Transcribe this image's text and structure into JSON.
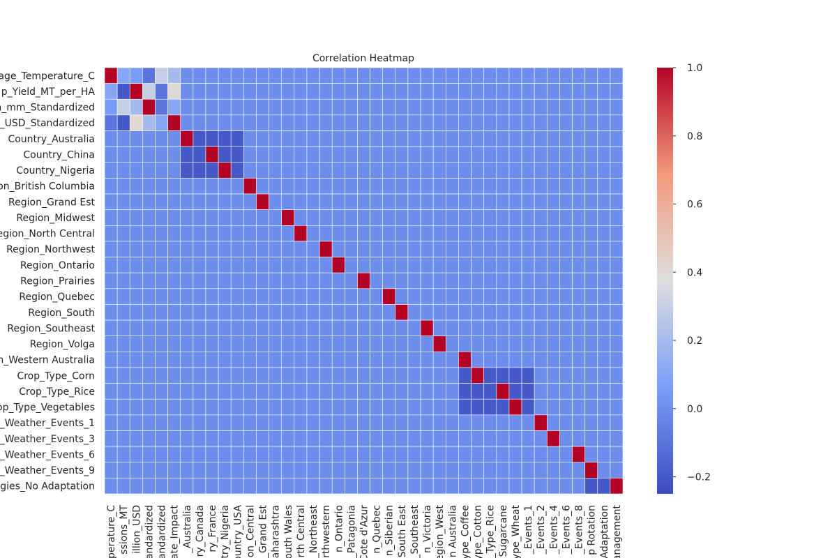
{
  "chart_data": {
    "type": "heatmap",
    "title": "Correlation Heatmap",
    "colormap": "coolwarm",
    "x_categories": [
      "perature_C",
      "ssions_MT",
      "illion_USD",
      "tandardized",
      "tandardized",
      "ate_Impact",
      "_Australia",
      "ry_Canada",
      "ry_France",
      "try_Nigeria",
      "ountry_USA",
      "on_Central",
      "_Grand Est",
      "aharashtra",
      "outh Wales",
      "rth Central",
      "_Northeast",
      "rthwestern",
      "n_Ontario",
      "_Patagonia",
      "Cote d'Azur",
      "n_Quebec",
      "n_Siberian",
      "South East",
      "_Southeast",
      "n_Victoria",
      "egion_West",
      "n Australia",
      "ype_Coffee",
      "ype_Cotton",
      "_Type_Rice",
      "Sugarcane",
      "ype_Wheat",
      "_Events_1",
      "_Events_2",
      "_Events_4",
      "_Events_6",
      "_Events_8",
      "p Rotation",
      "Adaptation",
      "anagement"
    ],
    "y_categories": [
      "age_Temperature_C",
      "p_Yield_MT_per_HA",
      "n_mm_Standardized",
      "_USD_Standardized",
      "Country_Australia",
      "Country_China",
      "Country_Nigeria",
      "on_British Columbia",
      "Region_Grand Est",
      "Region_Midwest",
      "egion_North Central",
      "Region_Northwest",
      "Region_Ontario",
      "Region_Prairies",
      "Region_Quebec",
      "Region_South",
      "Region_Southeast",
      "Region_Volga",
      "n_Western Australia",
      "Crop_Type_Corn",
      "Crop_Type_Rice",
      "op_Type_Vegetables",
      "_Weather_Events_1",
      "_Weather_Events_3",
      "_Weather_Events_6",
      "_Weather_Events_9",
      "egies_No Adaptation"
    ],
    "values": [
      [
        1,
        0.1,
        0.05,
        -0.1,
        0.3,
        0.2,
        0,
        0,
        0,
        0,
        0,
        0,
        0,
        0,
        0,
        0,
        0,
        0,
        0,
        0,
        0,
        0,
        0,
        0,
        0,
        0,
        0,
        0,
        0,
        0,
        0,
        0,
        0,
        0,
        0,
        0,
        0,
        0,
        0,
        0,
        0
      ],
      [
        0.1,
        -0.2,
        1,
        0.3,
        -0.1,
        0.4,
        0,
        0,
        0,
        0,
        0,
        0,
        0,
        0,
        0,
        0,
        0,
        0,
        0,
        0,
        0,
        0,
        0,
        0,
        0,
        0,
        0,
        0,
        0,
        0,
        0,
        0,
        0,
        0,
        0,
        0,
        0,
        0,
        0,
        0,
        0
      ],
      [
        0.05,
        0.3,
        0.2,
        1,
        -0.1,
        0.1,
        0,
        0,
        0,
        0,
        0,
        0,
        0,
        0,
        0,
        0,
        0,
        0,
        0,
        0,
        0,
        0,
        0,
        0,
        0,
        0,
        0,
        0,
        0,
        0,
        0,
        0,
        0,
        0,
        0,
        0,
        0,
        0,
        0,
        0,
        0
      ],
      [
        -0.1,
        -0.2,
        0.4,
        0.2,
        0.1,
        1,
        0,
        0,
        0,
        0,
        0,
        0,
        0,
        0,
        0,
        0,
        0,
        0,
        0,
        0,
        0,
        0,
        0,
        0,
        0,
        0,
        0,
        0,
        0,
        0,
        0,
        0,
        0,
        0,
        0,
        0,
        0,
        0,
        0,
        0,
        0
      ],
      [
        0,
        0,
        0,
        0,
        0,
        0,
        1,
        -0.2,
        -0.2,
        -0.2,
        -0.2,
        0,
        0,
        0,
        0,
        0,
        0,
        0,
        0,
        0,
        0,
        0,
        0,
        0,
        0,
        0,
        0,
        0,
        0,
        0,
        0,
        0,
        0,
        0,
        0,
        0,
        0,
        0,
        0,
        0,
        0
      ],
      [
        0,
        0,
        0,
        0,
        0,
        0,
        -0.2,
        -0.2,
        1,
        -0.2,
        -0.2,
        0,
        0,
        0,
        0,
        0,
        0,
        0,
        0,
        0,
        0,
        0,
        0,
        0,
        0,
        0,
        0,
        0,
        0,
        0,
        0,
        0,
        0,
        0,
        0,
        0,
        0,
        0,
        0,
        0,
        0
      ],
      [
        0,
        0,
        0,
        0,
        0,
        0,
        -0.2,
        -0.2,
        -0.2,
        1,
        -0.2,
        0,
        0,
        0,
        0,
        0,
        0,
        0,
        0,
        0,
        0,
        0,
        0,
        0,
        0,
        0,
        0,
        0,
        0,
        0,
        0,
        0,
        0,
        0,
        0,
        0,
        0,
        0,
        0,
        0,
        0
      ],
      [
        0,
        0,
        0,
        0,
        0,
        0,
        0,
        0,
        0,
        0,
        0,
        1,
        0,
        0,
        0,
        0,
        0,
        0,
        0,
        0,
        0,
        0,
        0,
        0,
        0,
        0,
        0,
        0,
        0,
        0,
        0,
        0,
        0,
        0,
        0,
        0,
        0,
        0,
        0,
        0,
        0
      ],
      [
        0,
        0,
        0,
        0,
        0,
        0,
        0,
        0,
        0,
        0,
        0,
        0,
        1,
        0,
        0,
        0,
        0,
        0,
        0,
        0,
        0,
        0,
        0,
        0,
        0,
        0,
        0,
        0,
        0,
        0,
        0,
        0,
        0,
        0,
        0,
        0,
        0,
        0,
        0,
        0,
        0
      ],
      [
        0,
        0,
        0,
        0,
        0,
        0,
        0,
        0,
        0,
        0,
        0,
        0,
        0,
        0,
        1,
        0,
        0,
        0,
        0,
        0,
        0,
        0,
        0,
        0,
        0,
        0,
        0,
        0,
        0,
        0,
        0,
        0,
        0,
        0,
        0,
        0,
        0,
        0,
        0,
        0,
        0
      ],
      [
        0,
        0,
        0,
        0,
        0,
        0,
        0,
        0,
        0,
        0,
        0,
        0,
        0,
        0,
        0,
        1,
        0,
        0,
        0,
        0,
        0,
        0,
        0,
        0,
        0,
        0,
        0,
        0,
        0,
        0,
        0,
        0,
        0,
        0,
        0,
        0,
        0,
        0,
        0,
        0,
        0
      ],
      [
        0,
        0,
        0,
        0,
        0,
        0,
        0,
        0,
        0,
        0,
        0,
        0,
        0,
        0,
        0,
        0,
        0,
        1,
        0,
        0,
        0,
        0,
        0,
        0,
        0,
        0,
        0,
        0,
        0,
        0,
        0,
        0,
        0,
        0,
        0,
        0,
        0,
        0,
        0,
        0,
        0
      ],
      [
        0,
        0,
        0,
        0,
        0,
        0,
        0,
        0,
        0,
        0,
        0,
        0,
        0,
        0,
        0,
        0,
        0,
        0,
        1,
        0,
        0,
        0,
        0,
        0,
        0,
        0,
        0,
        0,
        0,
        0,
        0,
        0,
        0,
        0,
        0,
        0,
        0,
        0,
        0,
        0,
        0
      ],
      [
        0,
        0,
        0,
        0,
        0,
        0,
        0,
        0,
        0,
        0,
        0,
        0,
        0,
        0,
        0,
        0,
        0,
        0,
        0,
        0,
        1,
        0,
        0,
        0,
        0,
        0,
        0,
        0,
        0,
        0,
        0,
        0,
        0,
        0,
        0,
        0,
        0,
        0,
        0,
        0,
        0
      ],
      [
        0,
        0,
        0,
        0,
        0,
        0,
        0,
        0,
        0,
        0,
        0,
        0,
        0,
        0,
        0,
        0,
        0,
        0,
        0,
        0,
        0,
        0,
        1,
        0,
        0,
        0,
        0,
        0,
        0,
        0,
        0,
        0,
        0,
        0,
        0,
        0,
        0,
        0,
        0,
        0,
        0
      ],
      [
        0,
        0,
        0,
        0,
        0,
        0,
        0,
        0,
        0,
        0,
        0,
        0,
        0,
        0,
        0,
        0,
        0,
        0,
        0,
        0,
        0,
        0,
        0,
        1,
        0,
        0,
        0,
        0,
        0,
        0,
        0,
        0,
        0,
        0,
        0,
        0,
        0,
        0,
        0,
        0,
        0
      ],
      [
        0,
        0,
        0,
        0,
        0,
        0,
        0,
        0,
        0,
        0,
        0,
        0,
        0,
        0,
        0,
        0,
        0,
        0,
        0,
        0,
        0,
        0,
        0,
        0,
        0,
        1,
        0,
        0,
        0,
        0,
        0,
        0,
        0,
        0,
        0,
        0,
        0,
        0,
        0,
        0,
        0
      ],
      [
        0,
        0,
        0,
        0,
        0,
        0,
        0,
        0,
        0,
        0,
        0,
        0,
        0,
        0,
        0,
        0,
        0,
        0,
        0,
        0,
        0,
        0,
        0,
        0,
        0,
        0,
        1,
        0,
        0,
        0,
        0,
        0,
        0,
        0,
        0,
        0,
        0,
        0,
        0,
        0,
        0
      ],
      [
        0,
        0,
        0,
        0,
        0,
        0,
        0,
        0,
        0,
        0,
        0,
        0,
        0,
        0,
        0,
        0,
        0,
        0,
        0,
        0,
        0,
        0,
        0,
        0,
        0,
        0,
        0,
        0,
        1,
        0,
        0,
        0,
        0,
        0,
        0,
        0,
        0,
        0,
        0,
        0,
        0
      ],
      [
        0,
        0,
        0,
        0,
        0,
        0,
        0,
        0,
        0,
        0,
        0,
        0,
        0,
        0,
        0,
        0,
        0,
        0,
        0,
        0,
        0,
        0,
        0,
        0,
        0,
        0,
        0,
        0,
        -0.2,
        1,
        -0.2,
        -0.2,
        -0.2,
        -0.2,
        0,
        0,
        0,
        0,
        0,
        0,
        0
      ],
      [
        0,
        0,
        0,
        0,
        0,
        0,
        0,
        0,
        0,
        0,
        0,
        0,
        0,
        0,
        0,
        0,
        0,
        0,
        0,
        0,
        0,
        0,
        0,
        0,
        0,
        0,
        0,
        0,
        -0.2,
        -0.2,
        -0.2,
        1,
        -0.2,
        -0.2,
        0,
        0,
        0,
        0,
        0,
        0,
        0
      ],
      [
        0,
        0,
        0,
        0,
        0,
        0,
        0,
        0,
        0,
        0,
        0,
        0,
        0,
        0,
        0,
        0,
        0,
        0,
        0,
        0,
        0,
        0,
        0,
        0,
        0,
        0,
        0,
        0,
        -0.2,
        -0.2,
        -0.2,
        -0.2,
        1,
        -0.2,
        0,
        0,
        0,
        0,
        0,
        0,
        0
      ],
      [
        0,
        0,
        0,
        0,
        0,
        0,
        0,
        0,
        0,
        0,
        0,
        0,
        0,
        0,
        0,
        0,
        0,
        0,
        0,
        0,
        0,
        0,
        0,
        0,
        0,
        0,
        0,
        0,
        0,
        0,
        0,
        0,
        0,
        0,
        1,
        0,
        0,
        0,
        0,
        0,
        0
      ],
      [
        0,
        0,
        0,
        0,
        0,
        0,
        0,
        0,
        0,
        0,
        0,
        0,
        0,
        0,
        0,
        0,
        0,
        0,
        0,
        0,
        0,
        0,
        0,
        0,
        0,
        0,
        0,
        0,
        0,
        0,
        0,
        0,
        0,
        0,
        0,
        1,
        0,
        0,
        0,
        0,
        0
      ],
      [
        0,
        0,
        0,
        0,
        0,
        0,
        0,
        0,
        0,
        0,
        0,
        0,
        0,
        0,
        0,
        0,
        0,
        0,
        0,
        0,
        0,
        0,
        0,
        0,
        0,
        0,
        0,
        0,
        0,
        0,
        0,
        0,
        0,
        0,
        0,
        0,
        0,
        1,
        0,
        0,
        0
      ],
      [
        0,
        0,
        0,
        0,
        0,
        0,
        0,
        0,
        0,
        0,
        0,
        0,
        0,
        0,
        0,
        0,
        0,
        0,
        0,
        0,
        0,
        0,
        0,
        0,
        0,
        0,
        0,
        0,
        0,
        0,
        0,
        0,
        0,
        0,
        0,
        0,
        0,
        0,
        1,
        0,
        0
      ],
      [
        0,
        0,
        0,
        0,
        0,
        0,
        0,
        0,
        0,
        0,
        0,
        0,
        0,
        0,
        0,
        0,
        0,
        0,
        0,
        0,
        0,
        0,
        0,
        0,
        0,
        0,
        0,
        0,
        0,
        0,
        0,
        0,
        0,
        0,
        0,
        0,
        0,
        0,
        -0.2,
        -0.2,
        1
      ]
    ],
    "clim": [
      -0.25,
      1.0
    ],
    "colorbar_ticks": [
      {
        "value": -0.2,
        "label": "−0.2"
      },
      {
        "value": 0,
        "label": "0.0"
      },
      {
        "value": 0.2,
        "label": "0.2"
      },
      {
        "value": 0.4,
        "label": "0.4"
      },
      {
        "value": 0.6,
        "label": "0.6"
      },
      {
        "value": 0.8,
        "label": "0.8"
      },
      {
        "value": 1.0,
        "label": "1.0"
      }
    ]
  }
}
